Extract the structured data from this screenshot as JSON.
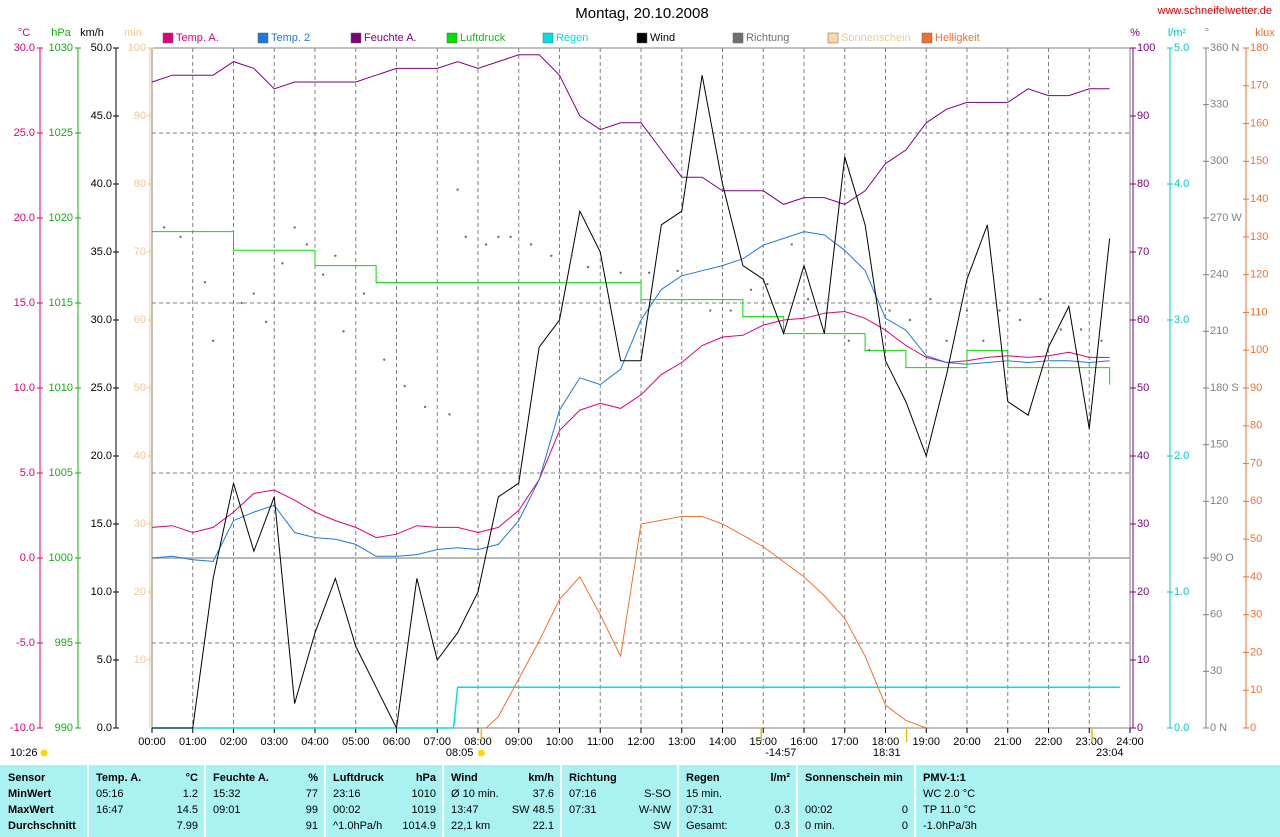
{
  "chart_data": {
    "type": "line",
    "title": "Montag, 20.10.2008",
    "site": "www.schneifelwetter.de",
    "timestamp": "10:26",
    "xlim": [
      0,
      24
    ],
    "xticks": [
      {
        "value": 0,
        "label": "00:00"
      },
      {
        "value": 1,
        "label": "01:00"
      },
      {
        "value": 2,
        "label": "02:00"
      },
      {
        "value": 3,
        "label": "03:00"
      },
      {
        "value": 4,
        "label": "04:00"
      },
      {
        "value": 5,
        "label": "05:00"
      },
      {
        "value": 6,
        "label": "06:00"
      },
      {
        "value": 7,
        "label": "07:00"
      },
      {
        "value": 8,
        "label": "08:00"
      },
      {
        "value": 9,
        "label": "09:00"
      },
      {
        "value": 10,
        "label": "10:00"
      },
      {
        "value": 11,
        "label": "11:00"
      },
      {
        "value": 12,
        "label": "12:00"
      },
      {
        "value": 13,
        "label": "13:00"
      },
      {
        "value": 14,
        "label": "14:00"
      },
      {
        "value": 15,
        "label": "15:00"
      },
      {
        "value": 16,
        "label": "16:00"
      },
      {
        "value": 17,
        "label": "17:00"
      },
      {
        "value": 18,
        "label": "18:00"
      },
      {
        "value": 19,
        "label": "19:00"
      },
      {
        "value": 20,
        "label": "20:00"
      },
      {
        "value": 21,
        "label": "21:00"
      },
      {
        "value": 22,
        "label": "22:00"
      },
      {
        "value": 23,
        "label": "23:00"
      },
      {
        "value": 24,
        "label": "24:00"
      }
    ],
    "grid": true,
    "hgrid": {
      "axis": "temp",
      "values": [
        -5,
        5,
        15,
        25
      ],
      "zero": 0
    },
    "axes": {
      "temp": {
        "unit": "°C",
        "color": "#e0007a",
        "lim": [
          -10,
          30
        ],
        "ticks": [
          {
            "value": 30,
            "label": "30.0"
          },
          {
            "value": 25,
            "label": "25.0"
          },
          {
            "value": 20,
            "label": "20.0"
          },
          {
            "value": 15,
            "label": "15.0"
          },
          {
            "value": 10,
            "label": "10.0"
          },
          {
            "value": 5,
            "label": "5.0"
          },
          {
            "value": 0,
            "label": "0.0"
          },
          {
            "value": -5,
            "label": "-5.0"
          },
          {
            "value": -10,
            "label": "-10.0"
          }
        ]
      },
      "pressure": {
        "unit": "hPa",
        "color": "#10b010",
        "lim": [
          990,
          1030
        ],
        "ticks": [
          1030,
          1025,
          1020,
          1015,
          1010,
          1005,
          1000,
          995,
          990
        ]
      },
      "wind": {
        "unit": "km/h",
        "color": "#000000",
        "lim": [
          0,
          50
        ],
        "ticks": [
          {
            "value": 50,
            "label": "50.0"
          },
          {
            "value": 45,
            "label": "45.0"
          },
          {
            "value": 40,
            "label": "40.0"
          },
          {
            "value": 35,
            "label": "35.0"
          },
          {
            "value": 30,
            "label": "30.0"
          },
          {
            "value": 25,
            "label": "25.0"
          },
          {
            "value": 20,
            "label": "20.0"
          },
          {
            "value": 15,
            "label": "15.0"
          },
          {
            "value": 10,
            "label": "10.0"
          },
          {
            "value": 5,
            "label": "5.0"
          },
          {
            "value": 0,
            "label": "0.0"
          }
        ]
      },
      "minutes": {
        "unit": "min",
        "color": "#f0c890",
        "lim": [
          0,
          100
        ],
        "ticks": [
          100,
          90,
          80,
          70,
          60,
          50,
          40,
          30,
          20,
          10
        ]
      },
      "humidity": {
        "unit": "%",
        "color": "#800080",
        "lim": [
          0,
          100
        ],
        "ticks": [
          100,
          90,
          80,
          70,
          60,
          50,
          40,
          30,
          20,
          10,
          0
        ]
      },
      "rain": {
        "unit": "l/m²",
        "color": "#00c8c8",
        "lim": [
          0,
          5
        ],
        "ticks": [
          {
            "value": 5,
            "label": "5.0"
          },
          {
            "value": 4,
            "label": "4.0"
          },
          {
            "value": 3,
            "label": "3.0"
          },
          {
            "value": 2,
            "label": "2.0"
          },
          {
            "value": 1,
            "label": "1.0"
          },
          {
            "value": 0,
            "label": "0.0"
          }
        ]
      },
      "direction": {
        "unit": "°",
        "color": "#808080",
        "lim": [
          0,
          360
        ],
        "ticks": [
          {
            "value": 360,
            "label": "360 N"
          },
          330,
          300,
          {
            "value": 270,
            "label": "270 W"
          },
          240,
          210,
          {
            "value": 180,
            "label": "180 S"
          },
          150,
          120,
          {
            "value": 90,
            "label": "90 O"
          },
          60,
          30,
          {
            "value": 0,
            "label": "0 N"
          }
        ]
      },
      "light": {
        "unit": "klux",
        "color": "#f07030",
        "lim": [
          0,
          180
        ],
        "ticks": [
          180,
          170,
          160,
          150,
          140,
          130,
          120,
          110,
          100,
          90,
          80,
          70,
          60,
          50,
          40,
          30,
          20,
          10,
          0
        ]
      }
    },
    "x": [
      0,
      0.5,
      1,
      1.5,
      2,
      2.5,
      3,
      3.5,
      4,
      4.5,
      5,
      5.5,
      6,
      6.5,
      7,
      7.5,
      8,
      8.5,
      9,
      9.5,
      10,
      10.5,
      11,
      11.5,
      12,
      12.5,
      13,
      13.5,
      14,
      14.5,
      15,
      15.5,
      16,
      16.5,
      17,
      17.5,
      18,
      18.5,
      19,
      19.5,
      20,
      20.5,
      21,
      21.5,
      22,
      22.5,
      23,
      23.5
    ],
    "series": [
      {
        "name": "Temp. A.",
        "color": "#e0007a",
        "axis": "temp",
        "values": [
          1.8,
          1.9,
          1.5,
          1.8,
          2.7,
          3.8,
          4.0,
          3.4,
          2.7,
          2.2,
          1.8,
          1.2,
          1.4,
          1.9,
          1.8,
          1.8,
          1.5,
          1.8,
          2.8,
          4.6,
          7.5,
          8.7,
          9.1,
          8.8,
          9.6,
          10.8,
          11.5,
          12.5,
          13.0,
          13.1,
          13.7,
          14.0,
          14.1,
          14.4,
          14.5,
          14.1,
          13.4,
          12.5,
          11.8,
          11.5,
          11.6,
          11.8,
          11.9,
          11.8,
          11.9,
          12.1,
          11.8,
          11.8
        ]
      },
      {
        "name": "Temp. 2",
        "color": "#1e78dc",
        "axis": "temp",
        "values": [
          0.0,
          0.1,
          -0.1,
          -0.2,
          2.2,
          2.7,
          3.1,
          1.5,
          1.2,
          1.1,
          0.8,
          0.1,
          0.1,
          0.2,
          0.5,
          0.6,
          0.5,
          0.8,
          2.2,
          4.6,
          8.7,
          10.6,
          10.2,
          11.1,
          14.0,
          15.8,
          16.6,
          16.9,
          17.2,
          17.6,
          18.4,
          18.8,
          19.2,
          19.0,
          18.1,
          16.9,
          14.1,
          13.4,
          11.9,
          11.5,
          11.4,
          11.5,
          11.6,
          11.5,
          11.6,
          11.6,
          11.5,
          11.6
        ]
      },
      {
        "name": "Feuchte A.",
        "color": "#800080",
        "axis": "humidity",
        "values": [
          95,
          96,
          96,
          96,
          98,
          97,
          94,
          95,
          95,
          95,
          95,
          96,
          97,
          97,
          97,
          98,
          97,
          98,
          99,
          99,
          96,
          90,
          88,
          89,
          89,
          85,
          81,
          81,
          79,
          79,
          79,
          77,
          78,
          78,
          77,
          79,
          83,
          85,
          89,
          91,
          92,
          92,
          92,
          94,
          93,
          93,
          94,
          94
        ]
      },
      {
        "name": "Luftdruck",
        "color": "#00e000",
        "axis": "pressure",
        "step": true,
        "values": [
          1019.2,
          1019.2,
          1019.2,
          1019.2,
          1018.1,
          1018.1,
          1018.1,
          1018.1,
          1017.2,
          1017.2,
          1017.2,
          1016.2,
          1016.2,
          1016.2,
          1016.2,
          1016.2,
          1016.2,
          1016.2,
          1016.2,
          1016.2,
          1016.2,
          1016.2,
          1016.2,
          1016.2,
          1015.2,
          1015.2,
          1015.2,
          1015.2,
          1015.2,
          1014.2,
          1014.2,
          1013.2,
          1013.2,
          1013.2,
          1013.2,
          1012.2,
          1012.2,
          1011.2,
          1011.2,
          1011.2,
          1012.2,
          1012.2,
          1011.2,
          1011.2,
          1011.2,
          1011.2,
          1011.2,
          1010.2
        ]
      },
      {
        "name": "Regen",
        "color": "#00e0e0",
        "axis": "rain",
        "x": [
          0,
          7.4,
          7.5,
          23.75
        ],
        "values": [
          0,
          0,
          0.3,
          0.3
        ]
      },
      {
        "name": "Wind",
        "color": "#000000",
        "axis": "wind",
        "values": [
          0,
          0,
          0,
          11,
          18,
          13,
          17,
          1.8,
          7,
          11,
          6,
          3,
          0,
          11,
          5,
          7,
          10,
          17,
          18,
          28,
          30,
          38,
          35,
          27,
          27,
          37,
          38,
          48,
          40,
          34,
          33,
          29,
          34,
          29,
          42,
          37,
          27,
          24,
          20,
          26,
          33,
          37,
          24,
          23,
          28,
          31,
          22,
          36
        ]
      },
      {
        "name": "Richtung",
        "color": "#707070",
        "axis": "direction",
        "style": "dots",
        "x": [
          0.3,
          0.7,
          1.3,
          1.5,
          2.2,
          2.5,
          2.8,
          3.2,
          3.5,
          3.8,
          4.2,
          4.5,
          4.7,
          5.2,
          5.7,
          6.2,
          6.7,
          7.3,
          7.5,
          7.7,
          8.2,
          8.5,
          8.8,
          9.3,
          9.8,
          10.3,
          10.7,
          11.5,
          12.2,
          12.9,
          13.7,
          14.2,
          14.7,
          15.1,
          15.7,
          16.1,
          16.6,
          17.1,
          17.6,
          18.1,
          18.6,
          19.1,
          19.5,
          20.0,
          20.4,
          20.8,
          21.3,
          21.8,
          22.3,
          22.8,
          23.3
        ],
        "values": [
          265,
          260,
          236,
          205,
          225,
          230,
          215,
          246,
          265,
          256,
          240,
          250,
          210,
          230,
          195,
          181,
          170,
          166,
          285,
          260,
          256,
          260,
          260,
          256,
          250,
          250,
          244,
          241,
          241,
          242,
          221,
          221,
          232,
          235,
          256,
          227,
          227,
          205,
          200,
          221,
          216,
          227,
          205,
          221,
          205,
          221,
          216,
          227,
          211,
          211,
          205
        ]
      },
      {
        "name": "Sonnenschein",
        "color": "#ffd8a0",
        "axis": "minutes"
      },
      {
        "name": "Helligkeit",
        "color": "#f07030",
        "axis": "light",
        "x": [
          8.2,
          8.5,
          9,
          9.5,
          10,
          10.5,
          11,
          11.5,
          12,
          12.5,
          13,
          13.5,
          14,
          14.5,
          15,
          15.5,
          16,
          16.5,
          17,
          17.5,
          18,
          18.5,
          19
        ],
        "values": [
          0,
          3,
          13,
          23,
          34,
          40,
          30,
          19,
          54,
          55,
          56,
          56,
          54,
          51,
          48,
          44,
          40,
          35,
          29,
          19,
          6,
          2,
          0
        ]
      }
    ],
    "annotations": [
      {
        "text": "08:05",
        "x": 8.083
      },
      {
        "text": "-14:57",
        "x": 14.95
      },
      {
        "text": "18:31",
        "x": 18.517
      },
      {
        "text": "23:04",
        "x": 23.067
      }
    ],
    "stats": [
      {
        "title": "Sensor",
        "rows": [
          "MinWert",
          "MaxWert",
          "Durchschnitt"
        ]
      },
      {
        "title": "Temp. A.",
        "unit": "°C",
        "rows": [
          {
            "l": "05:16",
            "r": "1.2"
          },
          {
            "l": "16:47",
            "r": "14.5"
          },
          {
            "r": "7.99"
          }
        ]
      },
      {
        "title": "Feuchte A.",
        "unit": "%",
        "rows": [
          {
            "l": "15:32",
            "r": "77"
          },
          {
            "l": "09:01",
            "r": "99"
          },
          {
            "r": "91"
          }
        ]
      },
      {
        "title": "Luftdruck",
        "unit": "hPa",
        "rows": [
          {
            "l": "23:16",
            "r": "1010"
          },
          {
            "l": "00:02",
            "r": "1019"
          },
          {
            "l": "^1.0hPa/h",
            "r": "1014.9"
          }
        ]
      },
      {
        "title": "Wind",
        "unit": "km/h",
        "rows": [
          {
            "l": "Ø 10 min.",
            "r": "37.6"
          },
          {
            "l": "13:47",
            "r": "SW 48.5"
          },
          {
            "l": "22,1 km",
            "r": "22.1"
          }
        ]
      },
      {
        "title": "Richtung",
        "rows": [
          {
            "l": "07:16",
            "r": "S-SO"
          },
          {
            "l": "07:31",
            "r": "W-NW"
          },
          {
            "r": "SW"
          }
        ]
      },
      {
        "title": "Regen",
        "unit": "l/m²",
        "rows": [
          {
            "l": "15 min."
          },
          {
            "l": "07:31",
            "r": "0.3"
          },
          {
            "l": "Gesamt:",
            "r": "0.3"
          }
        ]
      },
      {
        "title": "Sonnenschein min",
        "rows": [
          {},
          {
            "l": "00:02",
            "r": "0"
          },
          {
            "l": "0 min.",
            "r": "0"
          }
        ]
      },
      {
        "title": "PMV-1:1",
        "rows": [
          {
            "l": "WC 2.0 °C"
          },
          {
            "l": "TP 11.0 °C"
          },
          {
            "l": "-1.0hPa/3h"
          }
        ]
      }
    ]
  }
}
